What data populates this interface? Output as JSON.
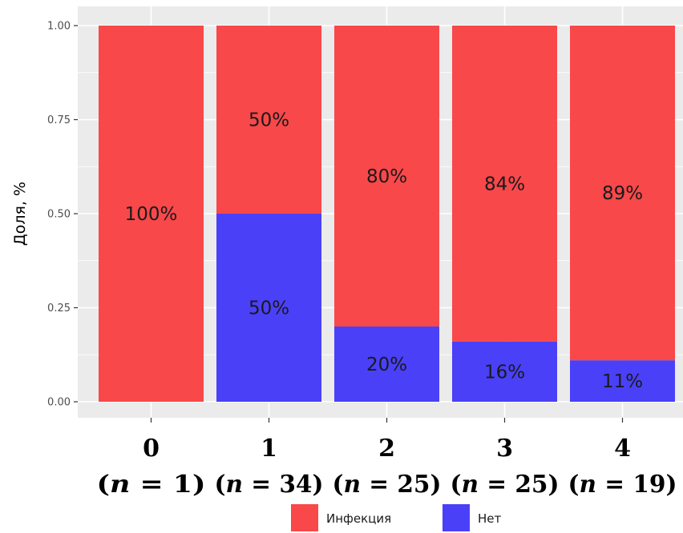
{
  "chart_data": {
    "type": "bar",
    "stacked": true,
    "categories": [
      "0",
      "1",
      "2",
      "3",
      "4"
    ],
    "category_counts": [
      "(n = 1)",
      "(n = 34)",
      "(n = 25)",
      "(n = 25)",
      "(n = 19)"
    ],
    "series": [
      {
        "name": "Инфекция",
        "color": "#f8484a",
        "values": [
          1.0,
          0.5,
          0.8,
          0.84,
          0.89
        ],
        "labels": [
          "100%",
          "50%",
          "80%",
          "84%",
          "89%"
        ]
      },
      {
        "name": "Нет",
        "color": "#4a40f7",
        "values": [
          0.0,
          0.5,
          0.2,
          0.16,
          0.11
        ],
        "labels": [
          "",
          "50%",
          "20%",
          "16%",
          "11%"
        ]
      }
    ],
    "ylabel": "Доля, %",
    "xlabel": "",
    "ylim": [
      0,
      1
    ],
    "yticks": [
      "0.00",
      "0.25",
      "0.50",
      "0.75",
      "1.00"
    ],
    "grid": true,
    "panel_background": "#ebebeb",
    "legend_position": "bottom"
  }
}
